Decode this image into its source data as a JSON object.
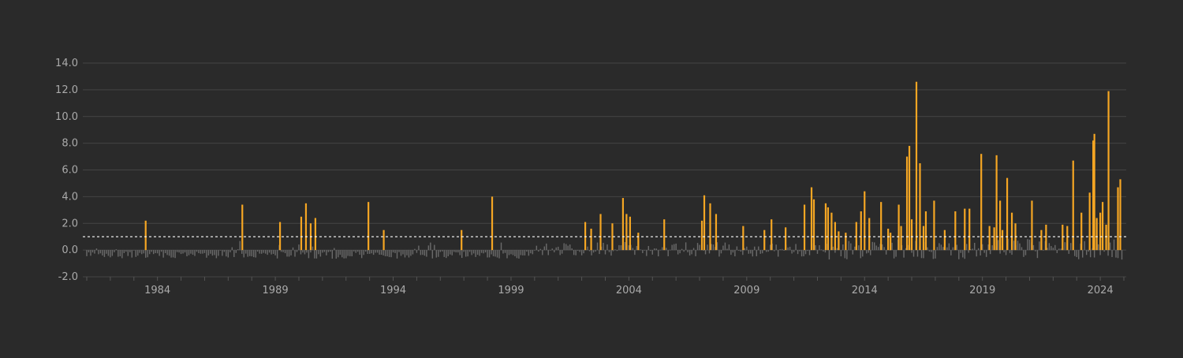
{
  "chart_data": {
    "type": "bar",
    "title": "",
    "xlabel": "",
    "ylabel": "",
    "ylim": [
      -2.0,
      14.0
    ],
    "y_ticks": [
      -2.0,
      0.0,
      2.0,
      4.0,
      6.0,
      8.0,
      10.0,
      12.0,
      14.0
    ],
    "y_tick_labels": [
      "-2.0",
      "0.0",
      "2.0",
      "4.0",
      "6.0",
      "8.0",
      "10.0",
      "12.0",
      "14.0"
    ],
    "x_range": [
      1981,
      2025
    ],
    "x_ticks": [
      1984,
      1989,
      1994,
      1999,
      2004,
      2009,
      2014,
      2019,
      2024
    ],
    "x_tick_labels": [
      "1984",
      "1989",
      "1994",
      "1999",
      "2004",
      "2009",
      "2014",
      "2019",
      "2024"
    ],
    "reference_line": {
      "value": 1.0,
      "style": "dashed",
      "color": "#ffffff"
    },
    "grid": true,
    "legend": "none",
    "colors": {
      "background": "#2a2a2a",
      "grid": "#444444",
      "tick_text": "#aaaaaa",
      "above_threshold": "#f5a623",
      "below_threshold": "#6b6b6b"
    },
    "threshold": 1.0,
    "series": [
      {
        "x": [
          1983.5,
          1987.6,
          1989.2,
          1990.1,
          1990.3,
          1990.5,
          1990.7,
          1992.95,
          1993.6,
          1996.9,
          1998.2,
          2002.15,
          2002.4,
          2002.8,
          2003.3,
          2003.75,
          2003.9,
          2004.05,
          2004.4,
          2005.5,
          2007.1,
          2007.2,
          2007.45,
          2007.7,
          2008.85,
          2009.75,
          2010.05,
          2010.65,
          2011.45,
          2011.75,
          2011.85,
          2012.35,
          2012.45,
          2012.6,
          2012.75,
          2012.9,
          2013.2,
          2013.65,
          2013.85,
          2014.0,
          2014.2,
          2014.7,
          2015.0,
          2015.1,
          2015.45,
          2015.55,
          2015.8,
          2015.9,
          2016.0,
          2016.2,
          2016.35,
          2016.5,
          2016.6,
          2016.95,
          2017.4,
          2017.85,
          2018.25,
          2018.45,
          2018.95,
          2019.3,
          2019.5,
          2019.6,
          2019.75,
          2019.85,
          2020.05,
          2020.25,
          2020.4,
          2021.1,
          2021.5,
          2021.7,
          2022.4,
          2022.6,
          2022.85,
          2023.2,
          2023.55,
          2023.7,
          2023.75,
          2023.85,
          2024.0,
          2024.1,
          2024.25,
          2024.35,
          2024.75,
          2024.85
        ],
        "values": [
          2.2,
          3.4,
          2.1,
          2.5,
          3.5,
          2.0,
          2.4,
          3.6,
          1.5,
          1.5,
          4.0,
          2.1,
          1.6,
          2.7,
          2.0,
          3.9,
          2.7,
          2.5,
          1.3,
          2.3,
          2.2,
          4.1,
          3.5,
          2.7,
          1.8,
          1.5,
          2.3,
          1.7,
          3.4,
          4.7,
          3.8,
          3.5,
          3.2,
          2.8,
          2.1,
          1.4,
          1.3,
          2.1,
          2.9,
          4.4,
          2.4,
          3.6,
          1.6,
          1.3,
          3.4,
          1.8,
          7.0,
          7.8,
          2.3,
          12.6,
          6.5,
          1.8,
          2.9,
          3.7,
          1.5,
          2.9,
          3.1,
          3.1,
          7.2,
          1.8,
          1.7,
          7.1,
          3.7,
          1.5,
          5.4,
          2.8,
          2.0,
          3.7,
          1.5,
          1.9,
          1.9,
          1.8,
          6.7,
          2.8,
          4.3,
          8.2,
          8.7,
          2.4,
          2.8,
          3.6,
          1.9,
          11.9,
          4.7,
          5.3
        ]
      }
    ]
  }
}
